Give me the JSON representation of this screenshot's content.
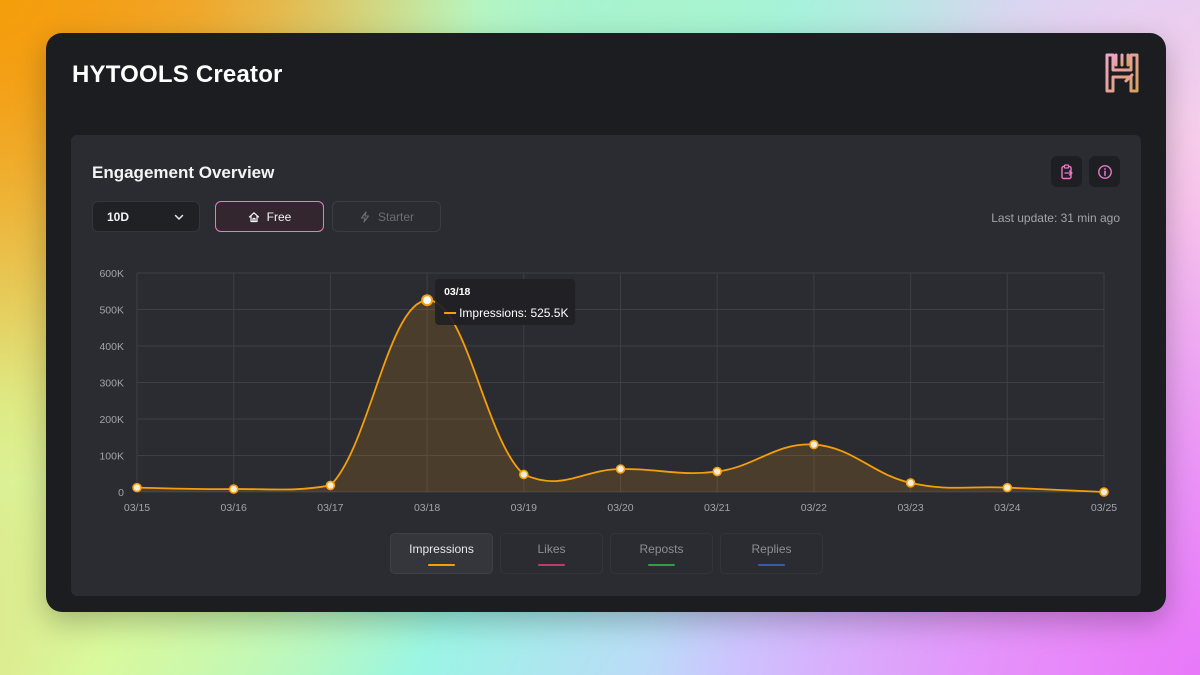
{
  "app": {
    "title": "HYTOOLS Creator",
    "logo": "hytools-logo"
  },
  "panel": {
    "title": "Engagement Overview",
    "range": {
      "selected": "10D"
    },
    "plans": [
      {
        "label": "Free",
        "icon": "home-icon",
        "active": true
      },
      {
        "label": "Starter",
        "icon": "bolt-icon",
        "active": false
      }
    ],
    "last_update": "Last update: 31 min ago",
    "actions": [
      {
        "icon": "clipboard-icon"
      },
      {
        "icon": "info-icon"
      }
    ]
  },
  "tooltip": {
    "date": "03/18",
    "label": "Impressions: 525.5K"
  },
  "legend": [
    {
      "label": "Impressions",
      "color": "#f59e0b",
      "active": true
    },
    {
      "label": "Likes",
      "color": "#c0396b",
      "active": false
    },
    {
      "label": "Reposts",
      "color": "#2f9e44",
      "active": false
    },
    {
      "label": "Replies",
      "color": "#3b5ba9",
      "active": false
    }
  ],
  "chart_data": {
    "type": "area",
    "x": [
      "03/15",
      "03/16",
      "03/17",
      "03/18",
      "03/19",
      "03/20",
      "03/21",
      "03/22",
      "03/23",
      "03/24",
      "03/25"
    ],
    "series": [
      {
        "name": "Impressions",
        "color": "#f59e0b",
        "values": [
          12000,
          8000,
          18000,
          525500,
          48000,
          63000,
          56000,
          130000,
          25000,
          12000,
          0
        ]
      }
    ],
    "yticks": [
      "0",
      "100K",
      "200K",
      "300K",
      "400K",
      "500K",
      "600K"
    ],
    "ylim": [
      0,
      600000
    ],
    "grid": true,
    "highlight_index": 3
  }
}
